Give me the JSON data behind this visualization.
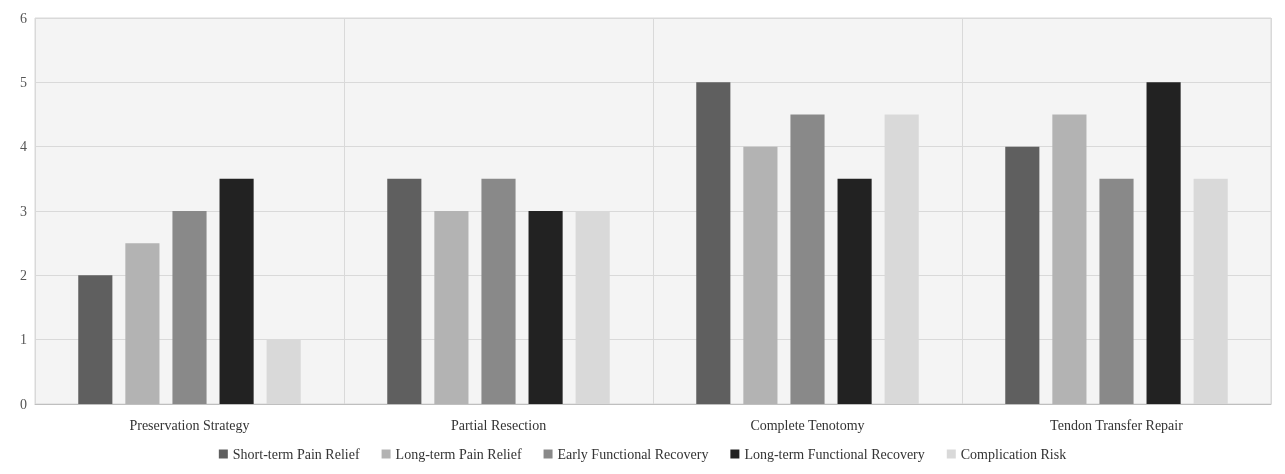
{
  "chart_data": {
    "type": "bar",
    "categories": [
      "Preservation Strategy",
      "Partial Resection",
      "Complete Tenotomy",
      "Tendon Transfer Repair"
    ],
    "series": [
      {
        "name": "Short-term Pain Relief",
        "color": "#5f5f5f",
        "values": [
          2,
          3.5,
          5,
          4
        ]
      },
      {
        "name": "Long-term Pain Relief",
        "color": "#b3b3b3",
        "values": [
          2.5,
          3,
          4,
          4.5
        ]
      },
      {
        "name": "Early Functional Recovery",
        "color": "#898989",
        "values": [
          3,
          3.5,
          4.5,
          3.5
        ]
      },
      {
        "name": "Long-term Functional Recovery",
        "color": "#222222",
        "values": [
          3.5,
          3,
          3.5,
          5
        ]
      },
      {
        "name": "Complication Risk",
        "color": "#d9d9d9",
        "values": [
          1,
          3,
          4.5,
          3.5
        ]
      }
    ],
    "ylim": [
      0,
      6
    ],
    "yticks": [
      0,
      1,
      2,
      3,
      4,
      5,
      6
    ],
    "grid": true,
    "legend": "bottom"
  }
}
